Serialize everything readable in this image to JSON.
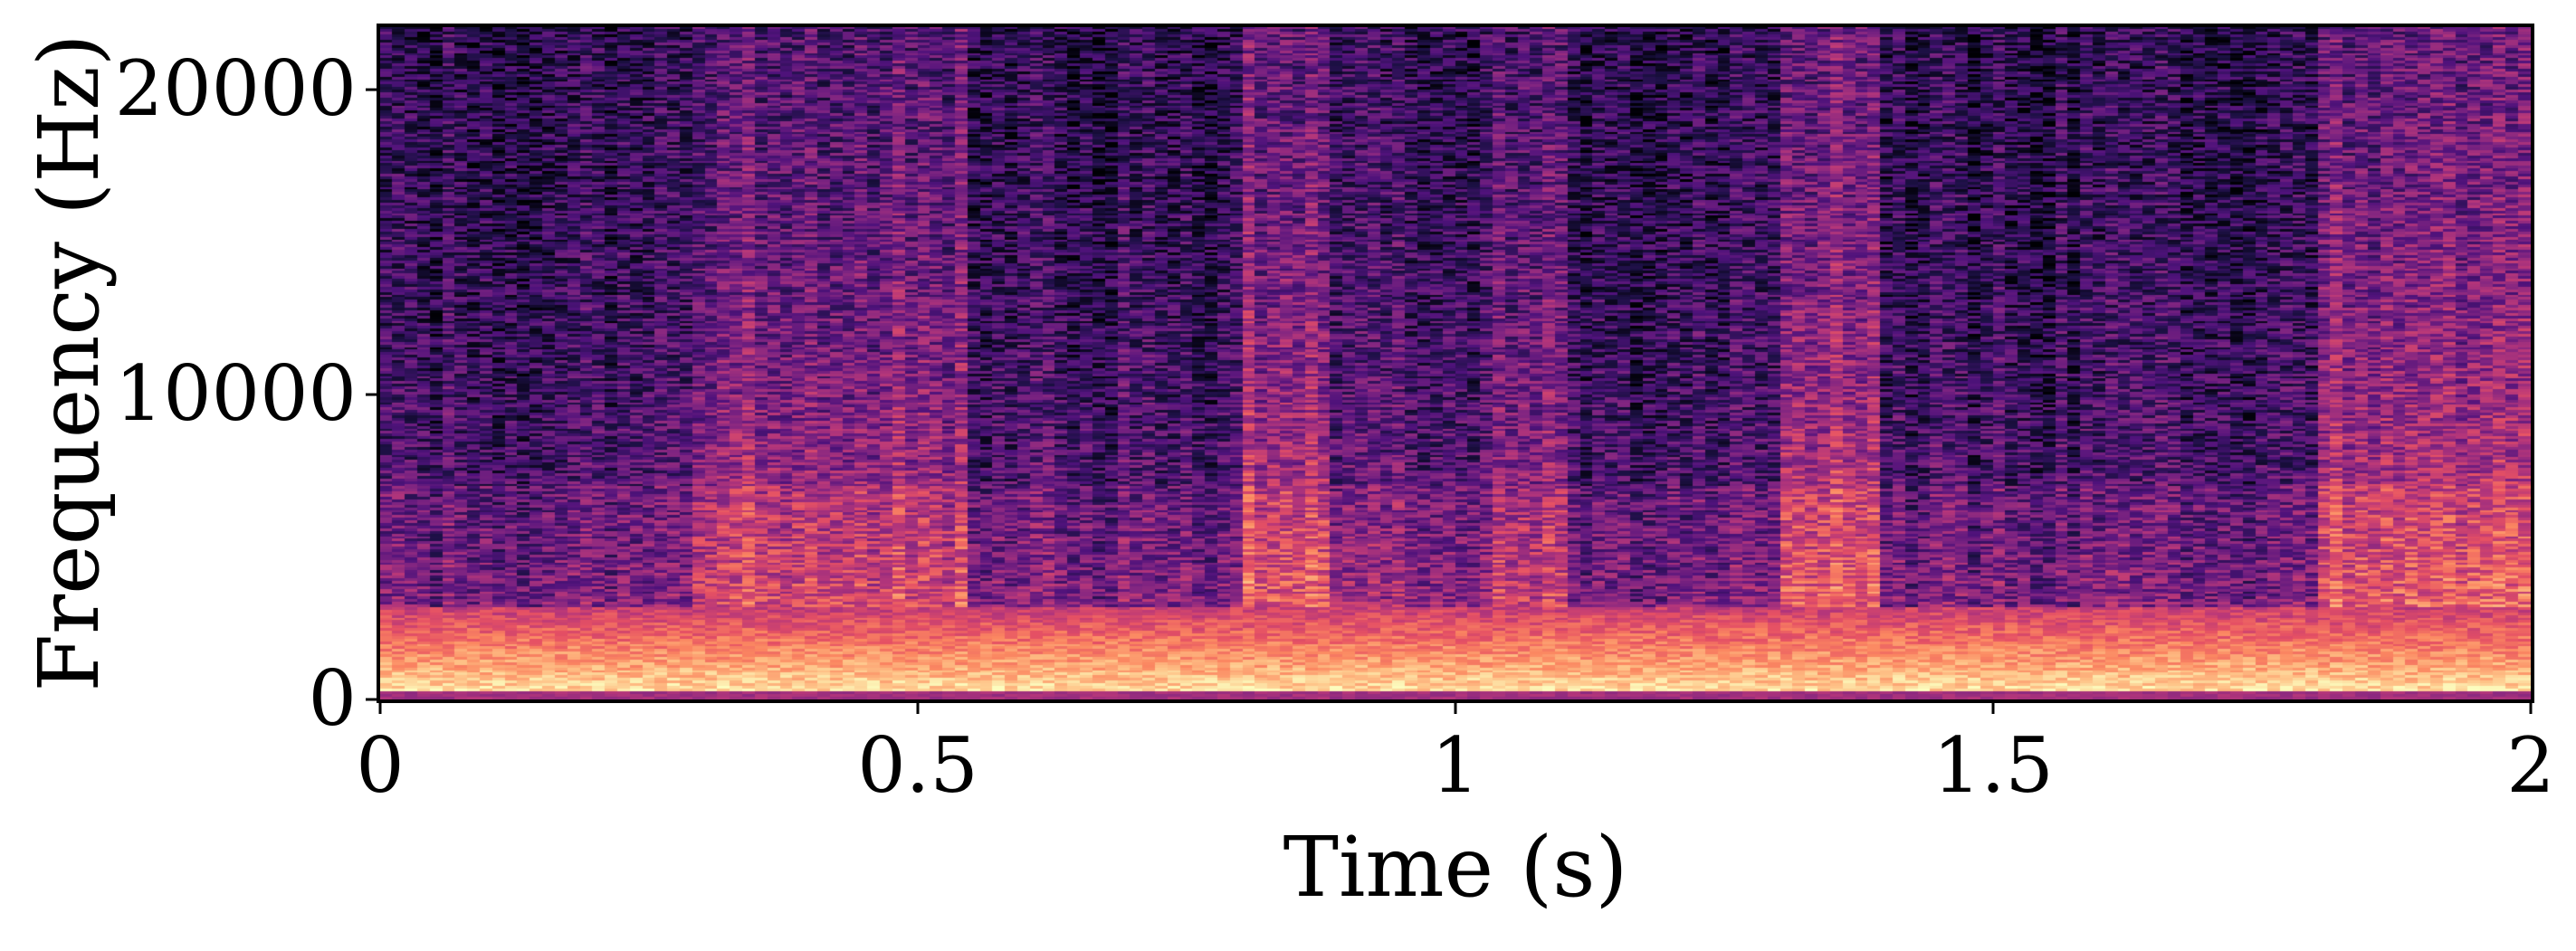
{
  "chart_data": {
    "type": "heatmap",
    "title": "",
    "xlabel": "Time (s)",
    "ylabel": "Frequency (Hz)",
    "xlim": [
      0,
      2
    ],
    "ylim": [
      0,
      22050
    ],
    "x_ticks": [
      {
        "value": 0,
        "label": "0"
      },
      {
        "value": 0.5,
        "label": "0.5"
      },
      {
        "value": 1,
        "label": "1"
      },
      {
        "value": 1.5,
        "label": "1.5"
      },
      {
        "value": 2,
        "label": "2"
      }
    ],
    "y_ticks": [
      {
        "value": 0,
        "label": "0"
      },
      {
        "value": 10000,
        "label": "10000"
      },
      {
        "value": 20000,
        "label": "20000"
      }
    ],
    "colormap": "magma",
    "colorbar": false,
    "grid": false,
    "energy_profile": {
      "description_free_values": true,
      "time_segments_s": [
        {
          "start": 0.0,
          "end": 0.29,
          "level": 0.3
        },
        {
          "start": 0.29,
          "end": 0.55,
          "level": 0.55
        },
        {
          "start": 0.55,
          "end": 0.8,
          "level": 0.32
        },
        {
          "start": 0.8,
          "end": 0.88,
          "level": 0.62
        },
        {
          "start": 0.88,
          "end": 1.04,
          "level": 0.36
        },
        {
          "start": 1.04,
          "end": 1.1,
          "level": 0.5
        },
        {
          "start": 1.1,
          "end": 1.3,
          "level": 0.3
        },
        {
          "start": 1.3,
          "end": 1.4,
          "level": 0.62
        },
        {
          "start": 1.4,
          "end": 1.8,
          "level": 0.3
        },
        {
          "start": 1.8,
          "end": 2.0,
          "level": 0.62
        }
      ],
      "low_frequency_band_hz": [
        0,
        3000
      ]
    },
    "colors": {
      "colormap_stops": [
        "#000004",
        "#1c1044",
        "#4f127b",
        "#812581",
        "#b5367a",
        "#e55064",
        "#fb8761",
        "#fec287",
        "#fcfdbf"
      ]
    }
  }
}
